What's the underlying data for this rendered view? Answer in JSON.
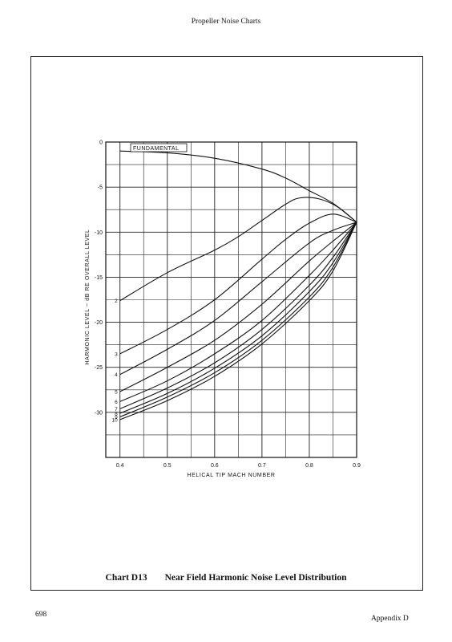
{
  "page": {
    "running_head": "Propeller Noise Charts",
    "caption_label": "Chart D13",
    "caption_title": "Near Field Harmonic Noise Level Distribution",
    "page_number": "698",
    "appendix": "Appendix D"
  },
  "chart_data": {
    "type": "line",
    "title": "",
    "xlabel": "HELICAL TIP MACH NUMBER",
    "ylabel": "HARMONIC LEVEL ~ dB RE OVERALL LEVEL",
    "xlim": [
      0.37,
      0.9
    ],
    "ylim": [
      -35,
      0
    ],
    "x_ticks": [
      0.4,
      0.5,
      0.6,
      0.7,
      0.8,
      0.9
    ],
    "x_tick_labels": [
      "0.4",
      "0.5",
      "0.6",
      "0.7",
      "0.8",
      "0.9"
    ],
    "y_ticks": [
      0,
      -5,
      -10,
      -15,
      -20,
      -25,
      -30
    ],
    "y_tick_labels": [
      "0",
      "-5",
      "-10",
      "-15",
      "-20",
      "-25",
      "-30"
    ],
    "grid": true,
    "legend": "none",
    "series": [
      {
        "name": "FUNDAMENTAL",
        "x": [
          0.4,
          0.5,
          0.6,
          0.7,
          0.75,
          0.8,
          0.85,
          0.9
        ],
        "y": [
          -1.0,
          -1.2,
          -1.8,
          -3.0,
          -4.0,
          -5.4,
          -6.8,
          -8.9
        ]
      },
      {
        "name": "2",
        "x": [
          0.4,
          0.5,
          0.6,
          0.65,
          0.7,
          0.75,
          0.78,
          0.82,
          0.86,
          0.9
        ],
        "y": [
          -17.6,
          -14.5,
          -12.0,
          -10.5,
          -8.7,
          -6.9,
          -6.2,
          -6.3,
          -7.2,
          -8.9
        ]
      },
      {
        "name": "3",
        "x": [
          0.4,
          0.5,
          0.6,
          0.7,
          0.75,
          0.8,
          0.85,
          0.9
        ],
        "y": [
          -23.5,
          -20.8,
          -17.5,
          -13.0,
          -10.8,
          -9.0,
          -8.0,
          -8.9
        ]
      },
      {
        "name": "4",
        "x": [
          0.4,
          0.5,
          0.6,
          0.7,
          0.8,
          0.85,
          0.9
        ],
        "y": [
          -25.8,
          -23.0,
          -19.8,
          -15.5,
          -11.2,
          -9.8,
          -8.9
        ]
      },
      {
        "name": "5",
        "x": [
          0.4,
          0.5,
          0.6,
          0.7,
          0.8,
          0.85,
          0.9
        ],
        "y": [
          -27.7,
          -25.0,
          -22.0,
          -18.0,
          -13.2,
          -11.0,
          -8.9
        ]
      },
      {
        "name": "6",
        "x": [
          0.4,
          0.5,
          0.6,
          0.7,
          0.8,
          0.85,
          0.9
        ],
        "y": [
          -28.8,
          -26.5,
          -23.5,
          -19.8,
          -14.8,
          -12.0,
          -8.9
        ]
      },
      {
        "name": "7",
        "x": [
          0.4,
          0.5,
          0.6,
          0.7,
          0.8,
          0.85,
          0.9
        ],
        "y": [
          -29.6,
          -27.3,
          -24.5,
          -20.8,
          -15.9,
          -12.8,
          -8.9
        ]
      },
      {
        "name": "8",
        "x": [
          0.4,
          0.5,
          0.6,
          0.7,
          0.8,
          0.85,
          0.9
        ],
        "y": [
          -30.1,
          -27.9,
          -25.1,
          -21.5,
          -16.6,
          -13.4,
          -8.9
        ]
      },
      {
        "name": "9",
        "x": [
          0.4,
          0.5,
          0.6,
          0.7,
          0.8,
          0.85,
          0.9
        ],
        "y": [
          -30.5,
          -28.3,
          -25.6,
          -22.0,
          -17.2,
          -13.9,
          -8.9
        ]
      },
      {
        "name": "10",
        "x": [
          0.4,
          0.5,
          0.6,
          0.7,
          0.8,
          0.85,
          0.9
        ],
        "y": [
          -30.8,
          -28.7,
          -26.0,
          -22.4,
          -17.6,
          -14.3,
          -8.9
        ]
      }
    ]
  }
}
